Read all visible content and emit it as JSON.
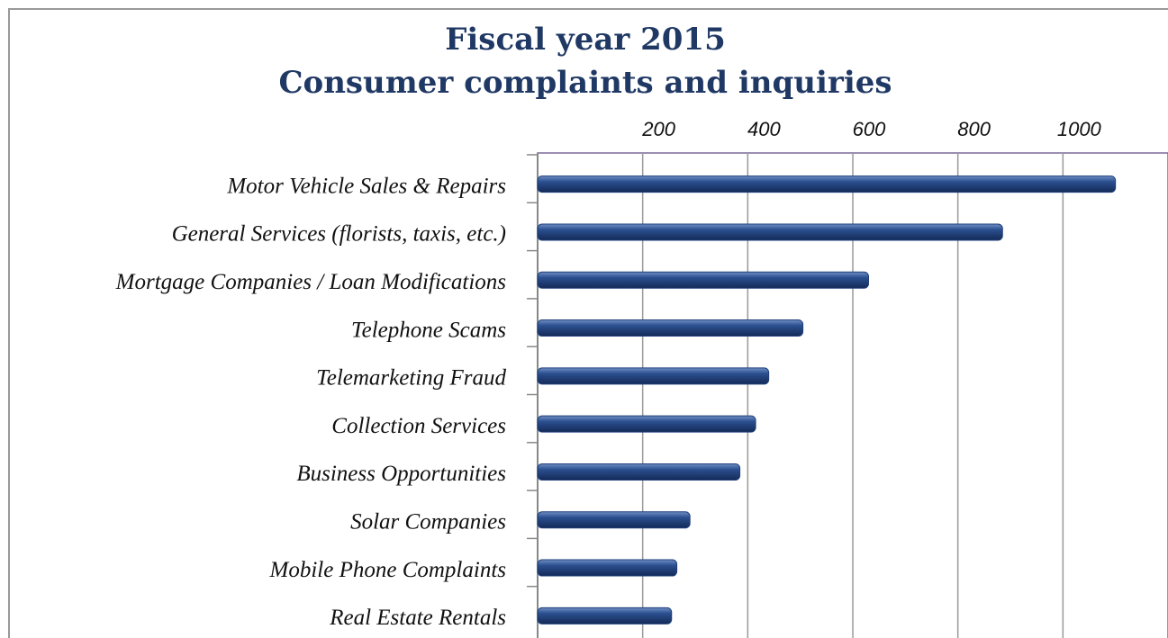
{
  "chart_data": {
    "type": "bar",
    "orientation": "horizontal",
    "title": "Fiscal year 2015",
    "subtitle": "Consumer complaints and inquiries",
    "categories": [
      "Motor Vehicle Sales & Repairs",
      "General Services (florists, taxis, etc.)",
      "Mortgage Companies / Loan Modifications",
      "Telephone Scams",
      "Telemarketing Fraud",
      "Collection Services",
      "Business Opportunities",
      "Solar Companies",
      "Mobile Phone Complaints",
      "Real Estate Rentals"
    ],
    "values": [
      1100,
      885,
      630,
      505,
      440,
      415,
      385,
      290,
      265,
      255
    ],
    "color": "#1f3f7a",
    "xlim": [
      0,
      1200
    ],
    "xticks": [
      200,
      400,
      600,
      800,
      1000
    ],
    "grid": true
  }
}
